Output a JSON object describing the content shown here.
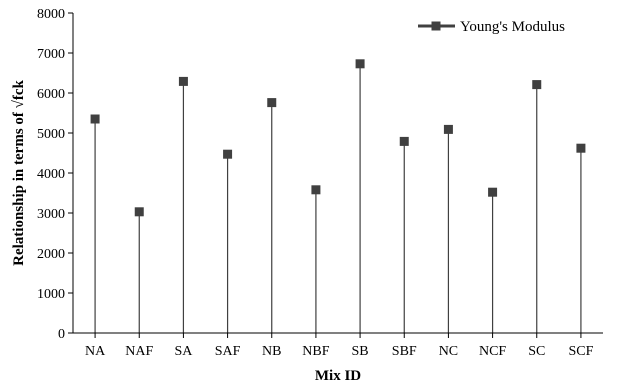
{
  "chart_data": {
    "type": "scatter",
    "style": "stem",
    "categories": [
      "NA",
      "NAF",
      "SA",
      "SAF",
      "NB",
      "NBF",
      "SB",
      "SBF",
      "NC",
      "NCF",
      "SC",
      "SCF"
    ],
    "series": [
      {
        "name": "Young's Modulus",
        "values": [
          5350,
          3030,
          6290,
          4470,
          5760,
          3580,
          6730,
          4790,
          5090,
          3520,
          6210,
          4620
        ],
        "marker": "square",
        "color": "#404040"
      }
    ],
    "title": "",
    "xlabel": "Mix ID",
    "ylabel": "Relationship in terms of √fck",
    "ylim": [
      0,
      8000
    ],
    "yticks": [
      0,
      1000,
      2000,
      3000,
      4000,
      5000,
      6000,
      7000,
      8000
    ],
    "grid": false,
    "legend": "top-right"
  }
}
